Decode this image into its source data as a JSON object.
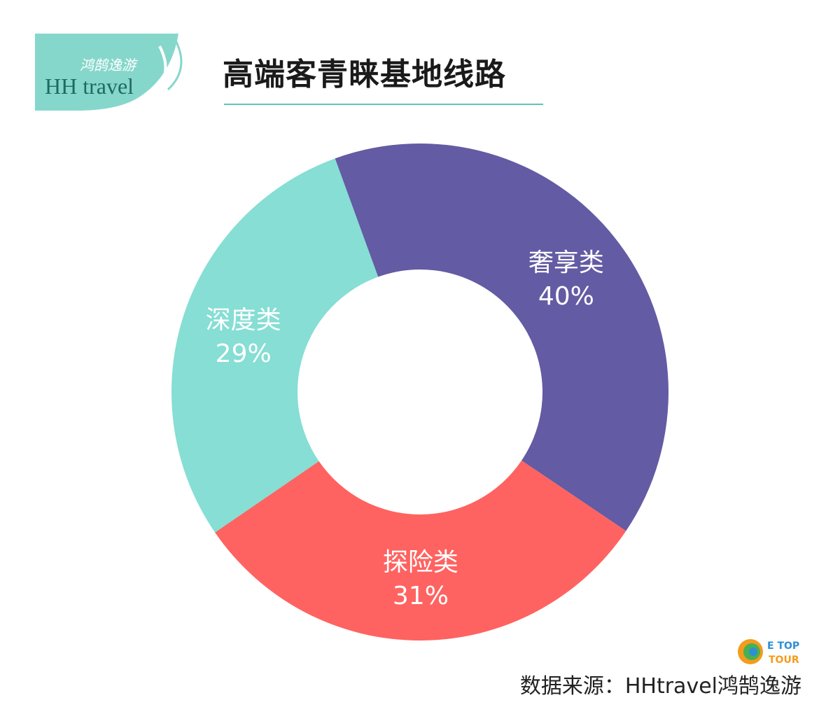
{
  "brand": {
    "logo_cn": "鸿鹄逸游",
    "logo_en": "HH travel",
    "logo_color": "#86d7cb"
  },
  "title": "高端客青睐基地线路",
  "source": "数据来源：HHtravel鸿鹄逸游",
  "watermark": {
    "line1": "E TOP",
    "line2": "TOUR"
  },
  "chart_data": {
    "type": "pie",
    "variant": "donut",
    "title": "",
    "start_angle_deg": -20,
    "slices": [
      {
        "label": "奢享类",
        "value": 40,
        "value_text": "40%",
        "color": "#635ba3"
      },
      {
        "label": "探险类",
        "value": 31,
        "value_text": "31%",
        "color": "#fe6361"
      },
      {
        "label": "深度类",
        "value": 29,
        "value_text": "29%",
        "color": "#86ded4"
      }
    ],
    "legend": "none"
  }
}
